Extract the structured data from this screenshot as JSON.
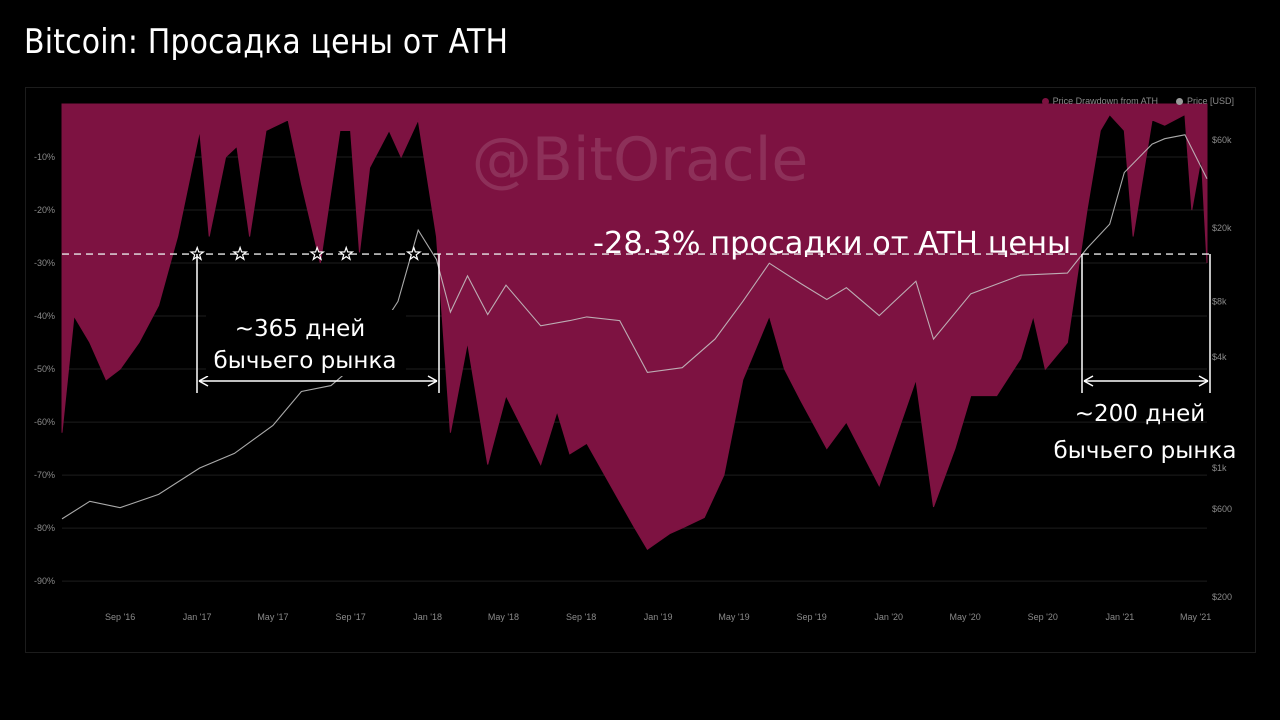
{
  "title": "Bitcoin: Просадка цены от ATH",
  "watermark": "@BitOracle",
  "colors": {
    "drawdown_fill": "#7d1241",
    "background": "#000000",
    "price_line": "#c8c8c8",
    "annotation": "#ffffff"
  },
  "legend": {
    "drawdown": "Price Drawdown from ATH",
    "price": "Price [USD]"
  },
  "annotations": {
    "threshold_label": "-28.3% просадки от ATH цены",
    "bull_2017_line1": "~365 дней",
    "bull_2017_line2": "бычьего рынка",
    "bull_2021_line1": "~200 дней",
    "bull_2021_line2": "бычьего рынка"
  },
  "chart_data": {
    "type": "area",
    "x_ticks": [
      "Sep '16",
      "Jan '17",
      "May '17",
      "Sep '17",
      "Jan '18",
      "May '18",
      "Sep '18",
      "Jan '19",
      "May '19",
      "Sep '19",
      "Jan '20",
      "May '20",
      "Sep '20",
      "Jan '21",
      "May '21"
    ],
    "y_left_ticks": [
      "-10%",
      "-20%",
      "-30%",
      "-40%",
      "-50%",
      "-60%",
      "-70%",
      "-80%",
      "-90%"
    ],
    "y_left_range": [
      -93,
      0
    ],
    "y_right_ticks": [
      "$60k",
      "$20k",
      "$8k",
      "$4k",
      "$1k",
      "$600",
      "$200"
    ],
    "y_right_scale": "log",
    "threshold": -28.3,
    "series": [
      {
        "name": "Price Drawdown from ATH",
        "x": [
          "2016-06-01",
          "2016-06-20",
          "2016-07-15",
          "2016-08-10",
          "2016-09-01",
          "2016-10-01",
          "2016-11-01",
          "2016-12-01",
          "2017-01-05",
          "2017-01-20",
          "2017-02-15",
          "2017-03-05",
          "2017-03-25",
          "2017-04-20",
          "2017-05-25",
          "2017-06-15",
          "2017-07-15",
          "2017-08-15",
          "2017-09-01",
          "2017-09-15",
          "2017-10-01",
          "2017-11-01",
          "2017-11-20",
          "2017-12-17",
          "2018-01-15",
          "2018-02-06",
          "2018-03-05",
          "2018-04-06",
          "2018-05-05",
          "2018-06-29",
          "2018-07-25",
          "2018-08-14",
          "2018-09-10",
          "2018-11-01",
          "2018-11-25",
          "2018-12-15",
          "2019-01-20",
          "2019-02-08",
          "2019-03-15",
          "2019-04-15",
          "2019-05-15",
          "2019-06-26",
          "2019-07-20",
          "2019-08-15",
          "2019-09-25",
          "2019-10-26",
          "2019-12-17",
          "2020-02-13",
          "2020-03-12",
          "2020-04-15",
          "2020-05-10",
          "2020-06-20",
          "2020-07-28",
          "2020-08-17",
          "2020-09-05",
          "2020-10-10",
          "2020-11-10",
          "2020-12-01",
          "2020-12-16",
          "2021-01-08",
          "2021-01-22",
          "2021-02-21",
          "2021-03-13",
          "2021-04-14",
          "2021-04-25",
          "2021-05-10",
          "2021-05-19"
        ],
        "y": [
          -62,
          -40,
          -45,
          -52,
          -50,
          -45,
          -38,
          -25,
          -5,
          -25,
          -10,
          -8,
          -25,
          -5,
          -3,
          -15,
          -30,
          -5,
          -5,
          -28,
          -12,
          -5,
          -10,
          -3,
          -25,
          -62,
          -45,
          -68,
          -55,
          -68,
          -58,
          -66,
          -64,
          -75,
          -80,
          -84,
          -81,
          -80,
          -78,
          -70,
          -52,
          -40,
          -50,
          -56,
          -65,
          -60,
          -72,
          -52,
          -76,
          -65,
          -55,
          -55,
          -48,
          -40,
          -50,
          -45,
          -20,
          -5,
          -2,
          -5,
          -25,
          -3,
          -4,
          -2,
          -20,
          -10,
          -30
        ]
      },
      {
        "name": "Price [USD]",
        "x": [
          "2016-06-01",
          "2016-07-15",
          "2016-09-01",
          "2016-11-01",
          "2017-01-05",
          "2017-03-01",
          "2017-05-01",
          "2017-06-15",
          "2017-08-01",
          "2017-09-15",
          "2017-10-15",
          "2017-11-15",
          "2017-12-17",
          "2018-01-15",
          "2018-02-06",
          "2018-03-05",
          "2018-04-06",
          "2018-05-05",
          "2018-06-29",
          "2018-08-14",
          "2018-09-10",
          "2018-11-01",
          "2018-12-15",
          "2019-02-08",
          "2019-04-01",
          "2019-05-15",
          "2019-06-26",
          "2019-08-15",
          "2019-09-25",
          "2019-10-26",
          "2019-12-17",
          "2020-02-13",
          "2020-03-12",
          "2020-05-10",
          "2020-07-28",
          "2020-10-10",
          "2020-11-10",
          "2020-12-16",
          "2021-01-08",
          "2021-02-21",
          "2021-03-13",
          "2021-04-14",
          "2021-05-19"
        ],
        "y": [
          530,
          660,
          610,
          720,
          1000,
          1200,
          1700,
          2600,
          2800,
          3800,
          5500,
          8000,
          19500,
          13500,
          7000,
          11000,
          6800,
          9800,
          5900,
          6300,
          6600,
          6300,
          3300,
          3500,
          5000,
          8000,
          12900,
          10000,
          8200,
          9500,
          6700,
          10300,
          5000,
          8800,
          11100,
          11400,
          15500,
          21000,
          40000,
          57000,
          61000,
          64000,
          37000
        ]
      }
    ]
  }
}
